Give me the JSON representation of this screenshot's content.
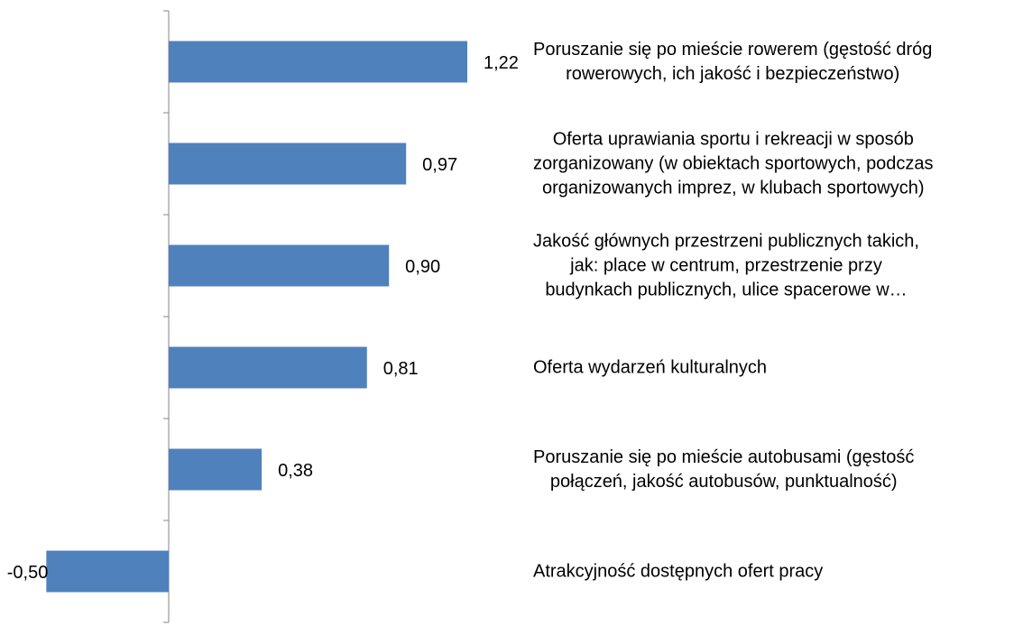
{
  "chart_data": {
    "type": "barh",
    "categories": [
      "Poruszanie się po mieście rowerem (gęstość dróg\nrowerowych, ich jakość i bezpieczeństwo)",
      "Oferta uprawiania sportu i rekreacji w sposób\nzorganizowany (w obiektach sportowych, podczas\norganizowanych imprez, w klubach sportowych)",
      "Jakość głównych przestrzeni publicznych takich,\njak: place w centrum, przestrzenie przy\nbudynkach publicznych, ulice spacerowe w…",
      "Oferta wydarzeń kulturalnych",
      "Poruszanie się po mieście autobusami (gęstość\npołączeń, jakość autobusów, punktualność)",
      "Atrakcyjność dostępnych ofert pracy"
    ],
    "values": [
      1.22,
      0.97,
      0.9,
      0.81,
      0.38,
      -0.5
    ],
    "value_labels": [
      "1,22",
      "0,97",
      "0,90",
      "0,81",
      "0,38",
      "-0,50"
    ],
    "color": "#4f81bd"
  }
}
